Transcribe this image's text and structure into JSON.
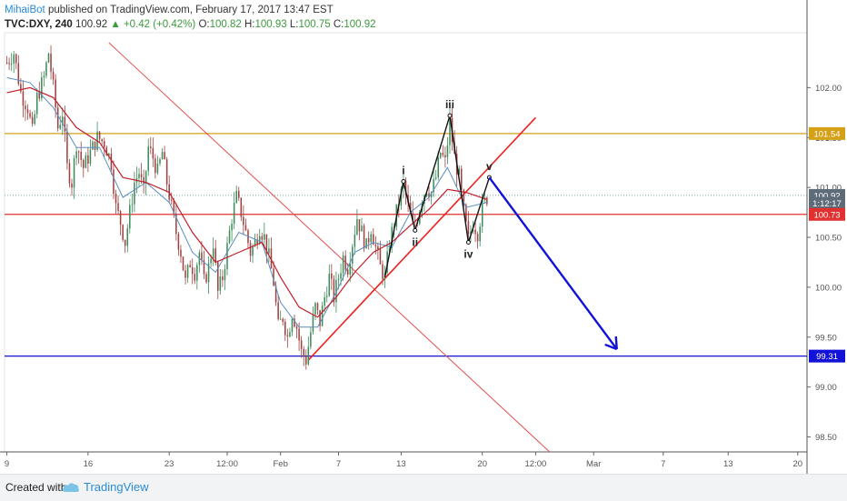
{
  "header": {
    "author": "MihaiBot",
    "published": " published on TradingView.com, February 17, 2017 13:47 EST",
    "symbol": "TVC:DXY, 240",
    "last": "100.92",
    "change": "▲ +0.42 (+0.42%)",
    "o_label": "O:",
    "o_value": "100.82",
    "h_label": "H:",
    "h_value": "100.93",
    "l_label": "L:",
    "l_value": "100.75",
    "c_label": "C:",
    "c_value": "100.92"
  },
  "footer": {
    "created": "Created with",
    "brand": "TradingView"
  },
  "colors": {
    "up": "#3c8c5a",
    "down": "#a04040",
    "ma": "#c0202a",
    "ma_fast": "#5a8fc0",
    "red_line": "#e02020",
    "gold": "#d4a017",
    "blue": "#1212d8",
    "wave": "#111111"
  },
  "chart_data": {
    "type": "candlestick",
    "ylim": [
      98.35,
      102.55
    ],
    "y_ticks": [
      "102.00",
      "101.50",
      "101.00",
      "100.50",
      "100.00",
      "99.50",
      "99.00",
      "98.50"
    ],
    "y_tick_values": [
      102.0,
      101.5,
      101.0,
      100.5,
      100.0,
      99.5,
      99.0,
      98.5
    ],
    "x_ticks": [
      "9",
      "16",
      "23",
      "12:00",
      "Feb",
      "7",
      "13",
      "20",
      "12:00",
      "Mar",
      "7",
      "13",
      "20"
    ],
    "x_tick_bars": [
      0,
      35,
      70,
      95,
      118,
      143,
      170,
      205,
      228,
      253,
      283,
      311,
      341
    ],
    "x_range_bars": [
      -1,
      345
    ],
    "price_tags": [
      {
        "value": 101.54,
        "label": "101.54",
        "color": "#d4a017"
      },
      {
        "value": 100.92,
        "label": "100.92",
        "color": "#5e6b78"
      },
      {
        "value": 100.84,
        "label": "1:12:17",
        "color": "#5e6b78"
      },
      {
        "value": 100.73,
        "label": "100.73",
        "color": "#e03030"
      },
      {
        "value": 99.31,
        "label": "99.31",
        "color": "#1212d8"
      }
    ],
    "horizontal_lines": [
      {
        "value": 101.54,
        "color": "#d4a017"
      },
      {
        "value": 100.73,
        "color": "#e03030"
      },
      {
        "value": 99.31,
        "color": "#1212d8"
      }
    ],
    "trend_lines": [
      {
        "from": [
          44,
          102.45
        ],
        "to": [
          234,
          98.35
        ],
        "color": "#e05050",
        "width": 1
      },
      {
        "from": [
          130,
          99.27
        ],
        "to": [
          228,
          101.7
        ],
        "color": "#ee2020",
        "width": 1.6
      }
    ],
    "projection": {
      "from": [
        208,
        101.1
      ],
      "to": [
        263,
        99.38
      ],
      "color": "#1212d8"
    },
    "waves": [
      {
        "label": "i",
        "bar": 171,
        "price": 101.06,
        "pos": "above"
      },
      {
        "label": "ii",
        "bar": 176,
        "price": 100.57,
        "pos": "below"
      },
      {
        "label": "iii",
        "bar": 191,
        "price": 101.72,
        "pos": "above"
      },
      {
        "label": "iv",
        "bar": 199,
        "price": 100.45,
        "pos": "below"
      },
      {
        "label": "v",
        "bar": 208,
        "price": 101.1,
        "pos": "above"
      }
    ],
    "wave_path": [
      [
        163,
        100.1
      ],
      [
        171,
        101.06
      ],
      [
        176,
        100.57
      ],
      [
        191,
        101.72
      ],
      [
        199,
        100.45
      ],
      [
        208,
        101.1
      ]
    ],
    "price_path": [
      [
        0,
        102.25
      ],
      [
        3,
        102.35
      ],
      [
        6,
        101.95
      ],
      [
        9,
        101.8
      ],
      [
        11,
        101.55
      ],
      [
        13,
        101.9
      ],
      [
        16,
        102.1
      ],
      [
        18,
        102.35
      ],
      [
        20,
        102.0
      ],
      [
        22,
        101.6
      ],
      [
        24,
        101.75
      ],
      [
        26,
        101.2
      ],
      [
        28,
        101.05
      ],
      [
        30,
        101.45
      ],
      [
        33,
        101.2
      ],
      [
        36,
        101.35
      ],
      [
        39,
        101.5
      ],
      [
        42,
        101.45
      ],
      [
        45,
        101.25
      ],
      [
        47,
        100.8
      ],
      [
        49,
        100.65
      ],
      [
        51,
        100.45
      ],
      [
        53,
        100.75
      ],
      [
        55,
        101.05
      ],
      [
        57,
        101.15
      ],
      [
        59,
        100.95
      ],
      [
        61,
        101.4
      ],
      [
        63,
        101.3
      ],
      [
        65,
        101.15
      ],
      [
        67,
        101.35
      ],
      [
        69,
        101.05
      ],
      [
        71,
        100.8
      ],
      [
        73,
        100.55
      ],
      [
        75,
        100.35
      ],
      [
        77,
        100.05
      ],
      [
        79,
        100.25
      ],
      [
        81,
        100.15
      ],
      [
        83,
        100.35
      ],
      [
        85,
        100.05
      ],
      [
        87,
        100.2
      ],
      [
        89,
        100.45
      ],
      [
        91,
        99.95
      ],
      [
        93,
        100.1
      ],
      [
        95,
        100.4
      ],
      [
        97,
        100.7
      ],
      [
        99,
        100.9
      ],
      [
        101,
        100.75
      ],
      [
        103,
        100.55
      ],
      [
        105,
        100.35
      ],
      [
        107,
        100.45
      ],
      [
        109,
        100.6
      ],
      [
        111,
        100.5
      ],
      [
        113,
        100.3
      ],
      [
        115,
        100.05
      ],
      [
        117,
        99.6
      ],
      [
        119,
        99.7
      ],
      [
        121,
        99.5
      ],
      [
        123,
        99.75
      ],
      [
        125,
        99.6
      ],
      [
        127,
        99.35
      ],
      [
        129,
        99.27
      ],
      [
        131,
        99.55
      ],
      [
        133,
        99.8
      ],
      [
        135,
        99.65
      ],
      [
        137,
        99.9
      ],
      [
        139,
        100.1
      ],
      [
        141,
        99.9
      ],
      [
        143,
        100.1
      ],
      [
        145,
        100.3
      ],
      [
        147,
        100.2
      ],
      [
        149,
        100.45
      ],
      [
        151,
        100.7
      ],
      [
        153,
        100.55
      ],
      [
        155,
        100.4
      ],
      [
        157,
        100.6
      ],
      [
        159,
        100.4
      ],
      [
        161,
        100.2
      ],
      [
        163,
        100.1
      ],
      [
        165,
        100.45
      ],
      [
        167,
        100.65
      ],
      [
        169,
        100.85
      ],
      [
        171,
        101.03
      ],
      [
        173,
        100.8
      ],
      [
        175,
        100.62
      ],
      [
        177,
        100.7
      ],
      [
        179,
        100.9
      ],
      [
        181,
        101.0
      ],
      [
        183,
        100.95
      ],
      [
        185,
        101.1
      ],
      [
        187,
        101.35
      ],
      [
        189,
        101.25
      ],
      [
        191,
        101.65
      ],
      [
        193,
        101.3
      ],
      [
        195,
        101.1
      ],
      [
        197,
        100.75
      ],
      [
        199,
        100.47
      ],
      [
        201,
        100.65
      ],
      [
        203,
        100.55
      ],
      [
        205,
        100.8
      ],
      [
        207,
        100.9
      ]
    ],
    "ma_path": [
      [
        0,
        101.95
      ],
      [
        10,
        102.0
      ],
      [
        20,
        101.9
      ],
      [
        30,
        101.6
      ],
      [
        40,
        101.45
      ],
      [
        50,
        101.1
      ],
      [
        60,
        101.05
      ],
      [
        70,
        100.95
      ],
      [
        80,
        100.55
      ],
      [
        90,
        100.25
      ],
      [
        100,
        100.35
      ],
      [
        110,
        100.45
      ],
      [
        118,
        100.1
      ],
      [
        126,
        99.8
      ],
      [
        134,
        99.7
      ],
      [
        142,
        99.9
      ],
      [
        150,
        100.15
      ],
      [
        158,
        100.35
      ],
      [
        166,
        100.45
      ],
      [
        174,
        100.62
      ],
      [
        182,
        100.78
      ],
      [
        190,
        100.98
      ],
      [
        198,
        100.95
      ],
      [
        207,
        100.88
      ]
    ],
    "ma_fast_path": [
      [
        0,
        102.1
      ],
      [
        10,
        102.05
      ],
      [
        20,
        101.8
      ],
      [
        30,
        101.4
      ],
      [
        40,
        101.4
      ],
      [
        50,
        100.9
      ],
      [
        60,
        101.05
      ],
      [
        70,
        100.85
      ],
      [
        80,
        100.35
      ],
      [
        90,
        100.15
      ],
      [
        100,
        100.55
      ],
      [
        110,
        100.45
      ],
      [
        118,
        99.85
      ],
      [
        126,
        99.6
      ],
      [
        134,
        99.6
      ],
      [
        142,
        99.95
      ],
      [
        150,
        100.35
      ],
      [
        158,
        100.45
      ],
      [
        166,
        100.4
      ],
      [
        174,
        100.75
      ],
      [
        182,
        100.9
      ],
      [
        190,
        101.2
      ],
      [
        198,
        100.8
      ],
      [
        207,
        100.85
      ]
    ]
  }
}
